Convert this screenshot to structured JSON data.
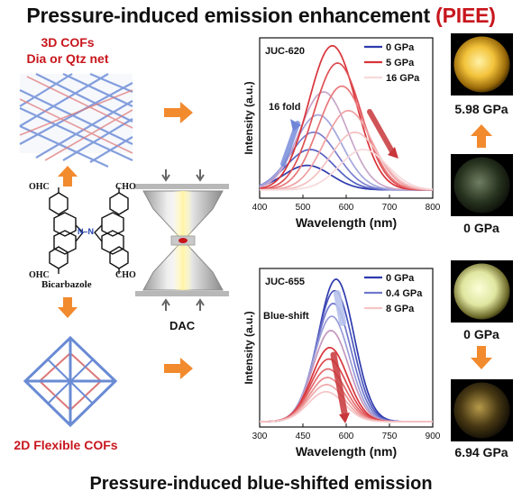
{
  "title": {
    "main": "Pressure-induced emission enhancement",
    "acronym": "(PIEE)"
  },
  "bottom_title": "Pressure-induced blue-shifted emission",
  "left": {
    "cof3d_label_1": "3D COFs",
    "cof3d_label_2": "Dia or Qtz net",
    "cof2d_label": "2D Flexible COFs",
    "molecule": {
      "name": "Bicarbazole",
      "group": "OHC",
      "group_r": "CHO",
      "n_label": "N–N"
    }
  },
  "dac_label": "DAC",
  "colors": {
    "accent_red": "#c8161d",
    "arrow_orange": "#f28a2e",
    "blue": "#3340b5",
    "red": "#d8343a"
  },
  "chart_data": [
    {
      "type": "line",
      "title": "JUC-620",
      "xlabel": "Wavelength (nm)",
      "ylabel": "Intensity (a.u.)",
      "xlim": [
        400,
        800
      ],
      "xticks": [
        400,
        500,
        600,
        700,
        800
      ],
      "legend": [
        "0 GPa",
        "5 GPa",
        "16 GPa"
      ],
      "legend_position": "top-right",
      "annotations": [
        "16 fold"
      ],
      "series": [
        {
          "name": "0 GPa",
          "color": "#2e3aad",
          "peak_x": 510,
          "peak_y": 0.17
        },
        {
          "color": "#5561c0",
          "peak_x": 517,
          "peak_y": 0.28
        },
        {
          "color": "#7c7fcf",
          "peak_x": 525,
          "peak_y": 0.4
        },
        {
          "color": "#a3a6dc",
          "peak_x": 535,
          "peak_y": 0.52
        },
        {
          "color": "#c9a6c9",
          "peak_x": 548,
          "peak_y": 0.68
        },
        {
          "name": "5 GPa",
          "color": "#d8343a",
          "peak_x": 568,
          "peak_y": 1.0
        },
        {
          "color": "#df5054",
          "peak_x": 580,
          "peak_y": 0.88
        },
        {
          "color": "#e8787b",
          "peak_x": 590,
          "peak_y": 0.72
        },
        {
          "color": "#efa0a2",
          "peak_x": 605,
          "peak_y": 0.55
        },
        {
          "color": "#f4c0c1",
          "peak_x": 620,
          "peak_y": 0.4
        },
        {
          "name": "16 GPa",
          "color": "#f7d9da",
          "peak_x": 640,
          "peak_y": 0.28
        }
      ]
    },
    {
      "type": "line",
      "title": "JUC-655",
      "xlabel": "Wavelength (nm)",
      "ylabel": "Intensity (a.u.)",
      "xlim": [
        300,
        900
      ],
      "xticks": [
        300,
        450,
        600,
        750,
        900
      ],
      "legend": [
        "0 GPa",
        "0.4 GPa",
        "8 GPa"
      ],
      "legend_position": "top-right",
      "annotations": [
        "Blue-shift"
      ],
      "series": [
        {
          "name": "0 GPa",
          "color": "#2e3aad",
          "peak_x": 565,
          "peak_y": 1.0
        },
        {
          "color": "#4b55bb",
          "peak_x": 560,
          "peak_y": 0.92
        },
        {
          "name": "0.4 GPa",
          "color": "#7077cb",
          "peak_x": 555,
          "peak_y": 0.83
        },
        {
          "color": "#9a9dd9",
          "peak_x": 550,
          "peak_y": 0.74
        },
        {
          "color": "#c497bd",
          "peak_x": 547,
          "peak_y": 0.64
        },
        {
          "color": "#d8343a",
          "peak_x": 543,
          "peak_y": 0.52
        },
        {
          "color": "#de4a4f",
          "peak_x": 540,
          "peak_y": 0.44
        },
        {
          "color": "#e46a6d",
          "peak_x": 537,
          "peak_y": 0.37
        },
        {
          "color": "#ea8b8d",
          "peak_x": 535,
          "peak_y": 0.31
        },
        {
          "color": "#f0a9aa",
          "peak_x": 532,
          "peak_y": 0.26
        },
        {
          "name": "8 GPa",
          "color": "#f5c5c6",
          "peak_x": 530,
          "peak_y": 0.21
        }
      ]
    }
  ],
  "photos": {
    "top_high": "5.98 GPa",
    "top_low": "0 GPa",
    "bottom_low": "0 GPa",
    "bottom_high": "6.94 GPa"
  }
}
